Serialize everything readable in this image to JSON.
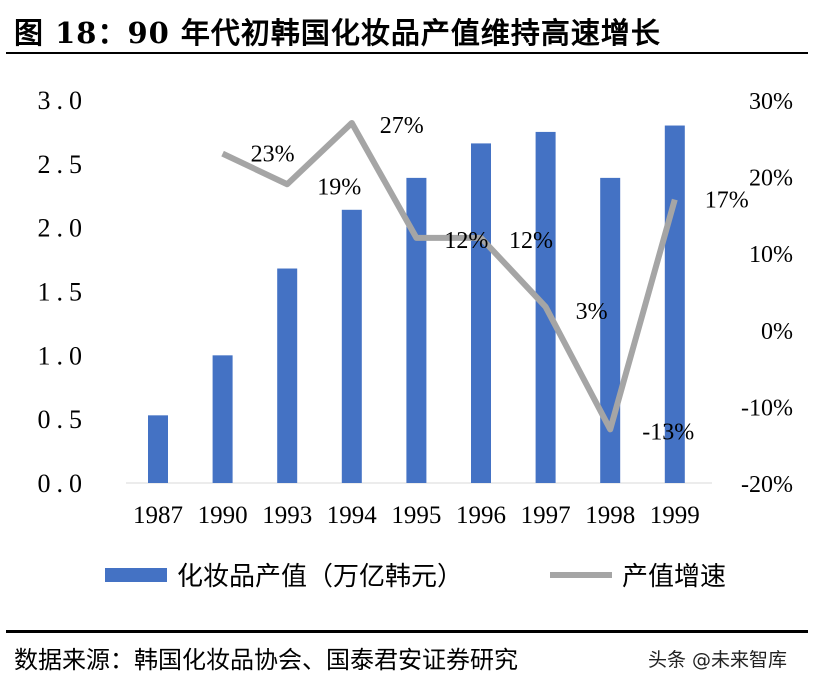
{
  "title": "图 18：90 年代初韩国化妆品产值维持高速增长",
  "source": "数据来源：韩国化妆品协会、国泰君安证券研究",
  "watermark": "头条 @未来智库",
  "chart_data": {
    "type": "bar+line",
    "categories": [
      "1987",
      "1990",
      "1993",
      "1994",
      "1995",
      "1996",
      "1997",
      "1998",
      "1999"
    ],
    "series": [
      {
        "name": "化妆品产值（万亿韩元）",
        "type": "bar",
        "axis": "left",
        "color": "#4472C4",
        "values": [
          0.53,
          1.0,
          1.68,
          2.14,
          2.39,
          2.66,
          2.75,
          2.39,
          2.8
        ]
      },
      {
        "name": "产值增速",
        "type": "line",
        "axis": "right",
        "color": "#A5A5A5",
        "values": [
          null,
          23,
          19,
          27,
          12,
          12,
          3,
          -13,
          17
        ],
        "labels": [
          "",
          "23%",
          "19%",
          "27%",
          "12%",
          "12%",
          "3%",
          "-13%",
          "17%"
        ]
      }
    ],
    "left_axis": {
      "ylim": [
        0,
        3.0
      ],
      "ticks": [
        "0.0",
        "0.5",
        "1.0",
        "1.5",
        "2.0",
        "2.5",
        "3.0"
      ]
    },
    "right_axis": {
      "ylim": [
        -20,
        30
      ],
      "ticks": [
        "-20%",
        "-10%",
        "0%",
        "10%",
        "20%",
        "30%"
      ]
    },
    "grid": false,
    "legend": "bottom"
  }
}
